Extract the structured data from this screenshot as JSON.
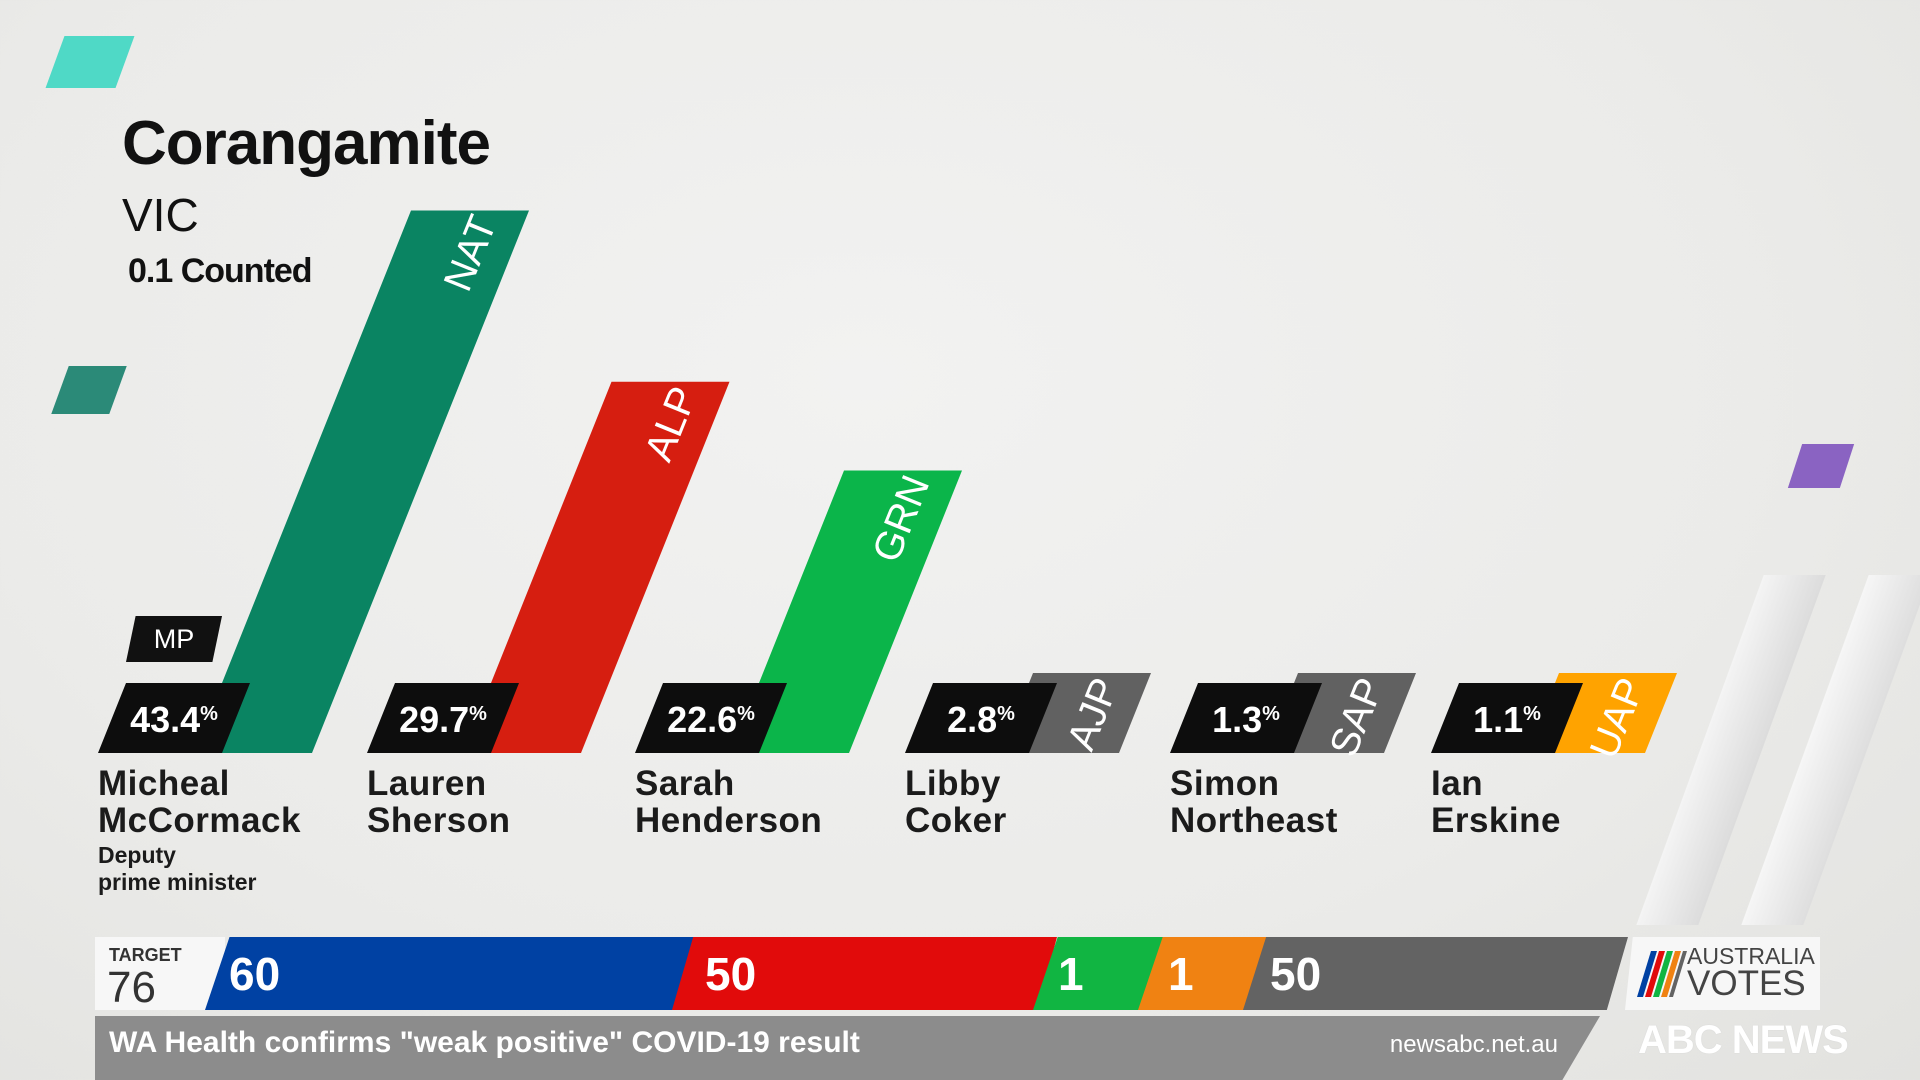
{
  "header": {
    "electorate": "Corangamite",
    "state": "VIC",
    "counted": "0.1 Counted"
  },
  "mp_tag": "MP",
  "percent_sign": "%",
  "candidates": [
    {
      "first": "Micheal",
      "last": "McCormack",
      "subtitle_1": "Deputy",
      "subtitle_2": "prime minister",
      "party": "NAT",
      "value_label": "43.4",
      "color": "#0a8462"
    },
    {
      "first": "Lauren",
      "last": "Sherson",
      "party": "ALP",
      "value_label": "29.7",
      "color": "#d61e10"
    },
    {
      "first": "Sarah",
      "last": "Henderson",
      "party": "GRN",
      "value_label": "22.6",
      "color": "#0bb54a"
    },
    {
      "first": "Libby",
      "last": "Coker",
      "party": "AJP",
      "value_label": "2.8",
      "color": "#616161"
    },
    {
      "first": "Simon",
      "last": "Northeast",
      "party": "SAP",
      "value_label": "1.3",
      "color": "#616161"
    },
    {
      "first": "Ian",
      "last": "Erskine",
      "party": "UAP",
      "value_label": "1.1",
      "color": "#ffa300"
    }
  ],
  "chart_data": {
    "type": "bar",
    "title": "Corangamite",
    "subtitle": "VIC",
    "categories": [
      "Micheal McCormack",
      "Lauren Sherson",
      "Sarah Henderson",
      "Libby Coker",
      "Simon Northeast",
      "Ian Erskine"
    ],
    "series": [
      {
        "values": [
          43.4,
          29.7,
          22.6,
          2.8,
          1.3,
          1.1
        ]
      }
    ],
    "party_labels": [
      "NAT",
      "ALP",
      "GRN",
      "AJP",
      "SAP",
      "UAP"
    ],
    "colors": [
      "#0a8462",
      "#d61e10",
      "#0bb54a",
      "#616161",
      "#616161",
      "#ffa300"
    ],
    "unit": "%"
  },
  "ticker": {
    "target_label": "TARGET",
    "target_value": "76",
    "seats": [
      {
        "value": "60",
        "color": "#0041a3"
      },
      {
        "value": "50",
        "color": "#e10b0b"
      },
      {
        "value": "1",
        "color": "#11b542"
      },
      {
        "value": "1",
        "color": "#f08212"
      },
      {
        "value": "50",
        "color": "#636363"
      }
    ],
    "logo_line1": "AUSTRALIA",
    "logo_line2": "VOTES",
    "headline": "WA Health confirms \"weak positive\" COVID-19 result",
    "url": "newsabc.net.au",
    "brand": "ABC NEWS"
  }
}
